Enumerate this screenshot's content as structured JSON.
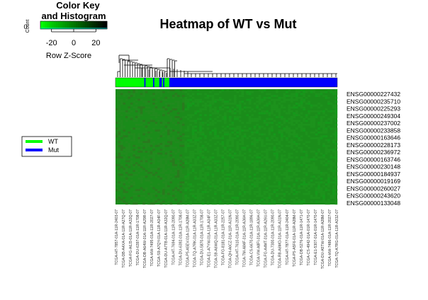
{
  "chart_data": {
    "type": "heatmap",
    "title": "Heatmap of WT vs Mut",
    "color_key": {
      "title_line1": "Color Key",
      "title_line2": "and Histogram",
      "xlabel": "Row Z-Score",
      "ylabel": "Count",
      "y_ticks": [
        "0"
      ],
      "ticks": [
        -20,
        0,
        20
      ],
      "xlim": [
        -30,
        30
      ],
      "palette": [
        "#00ff00",
        "#00c800",
        "#00a000",
        "#007800",
        "#004f00",
        "#002800",
        "#000000"
      ]
    },
    "legend": {
      "placement": "left",
      "entries": [
        {
          "label": "WT",
          "color": "#00ff00"
        },
        {
          "label": "Mut",
          "color": "#0000ff"
        }
      ]
    },
    "groups": {
      "WT": 82,
      "Mut": 205
    },
    "group_order": [
      "WT",
      "WT",
      "WT",
      "WT",
      "WT",
      "WT",
      "WT",
      "WT",
      "WT",
      "WT",
      "WT",
      "WT",
      "WT",
      "WT",
      "WT",
      "WT",
      "WT",
      "WT",
      "WT",
      "WT",
      "WT",
      "WT",
      "WT",
      "Mut",
      "WT",
      "WT",
      "WT",
      "WT",
      "WT",
      "WT",
      "Mut",
      "WT",
      "WT",
      "WT",
      "WT",
      "Mut",
      "Mut",
      "WT",
      "Mut",
      "WT",
      "WT",
      "WT",
      "WT",
      "Mut",
      "Mut",
      "Mut",
      "Mut",
      "Mut",
      "Mut",
      "Mut",
      "Mut",
      "Mut",
      "Mut",
      "Mut",
      "Mut",
      "Mut",
      "Mut",
      "Mut",
      "Mut",
      "Mut",
      "Mut",
      "Mut"
    ],
    "row_labels": [
      "ENSG00000227432",
      "ENSG00000235710",
      "ENSG00000225293",
      "ENSG00000249304",
      "ENSG00000237002",
      "ENSG00000233858",
      "ENSG00000163646",
      "ENSG00000228173",
      "ENSG00000236972",
      "ENSG00000163746",
      "ENSG00000230148",
      "ENSG00000184937",
      "ENSG00000019169",
      "ENSG00000260027",
      "ENSG00000243620",
      "ENSG00000133048"
    ],
    "column_labels": [
      "TCGA-HT-7857-01A-11R-2403-07",
      "TCGA-DB-A4XA-01A-11R-A27Q-07",
      "TCGA-FG-A6J3-01A-11R-A32Q-07",
      "TCGA-DU-6397-01A-11R-1708-07",
      "TCGA-DB-A64W-01A-11R-A29R-07",
      "TCGA-HW-7495-01A-11R-2027-07",
      "TCGA-S9-A7QY-01A-11R-A34F-07",
      "TCGA-DU-A7TB-01A-11R-A32Q-07",
      "TCGA-HT-7694-01A-11R-2090-07",
      "TCGA-DU-6392-01A-11R-1708-07",
      "TCGA-P5-A5EV-01A-11R-A28M-07",
      "TCGA-TQ-A7RK-01A-11R-A33Z-07",
      "TCGA-DU-5870-01A-11R-1708-07",
      "TCGA-E1-A7YW-01A-11R-A34F-07",
      "TCGA-S9-A6WQ-01A-11R-A33Z-07",
      "TCGA-FG-8181-01A-11R-2257-07",
      "TCGA-QH-A6CZ-01A-11R-A31N-07",
      "TCGA-HT-7610-01A-11R-2090-07",
      "TCGA-TM-A84F-01A-11R-A36H-07",
      "TCGA-CS-6670-01A-11R-1896-07",
      "TCGA-VW-A8FI-01A-11R-A36H-07",
      "TCGA-FG-A4MT-01A-11R-A26U-07",
      "TCGA-DU-7300-01A-11R-2090-07",
      "TCGA-R8-A6MO-01A-11R-A31N-07",
      "TCGA-HT-7877-01A-11R-2404-07",
      "TCGA-P5-A5F6-01A-11R-A28M-07",
      "TCGA-DB-5276-01A-11R-1471-07",
      "TCGA-CS-4942-01A-01R-1470-07",
      "TCGA-E1-5307-01A-01R-1470-07",
      "TCGA-DU-A5TW-01A-11R-A28M-07",
      "TCGA-HW-7486-01A-11R-2027-07",
      "TCGA-TQ-A7RG-01A-11R-A33Z-07"
    ]
  }
}
